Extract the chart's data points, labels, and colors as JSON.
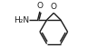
{
  "bg_color": "#ffffff",
  "line_color": "#1a1a1a",
  "line_width": 1.0,
  "figsize": [
    0.97,
    0.62
  ],
  "dpi": 100,
  "carbonyl_o_text": "O",
  "amine_text": "H₂N",
  "o_epoxide_text": "O"
}
